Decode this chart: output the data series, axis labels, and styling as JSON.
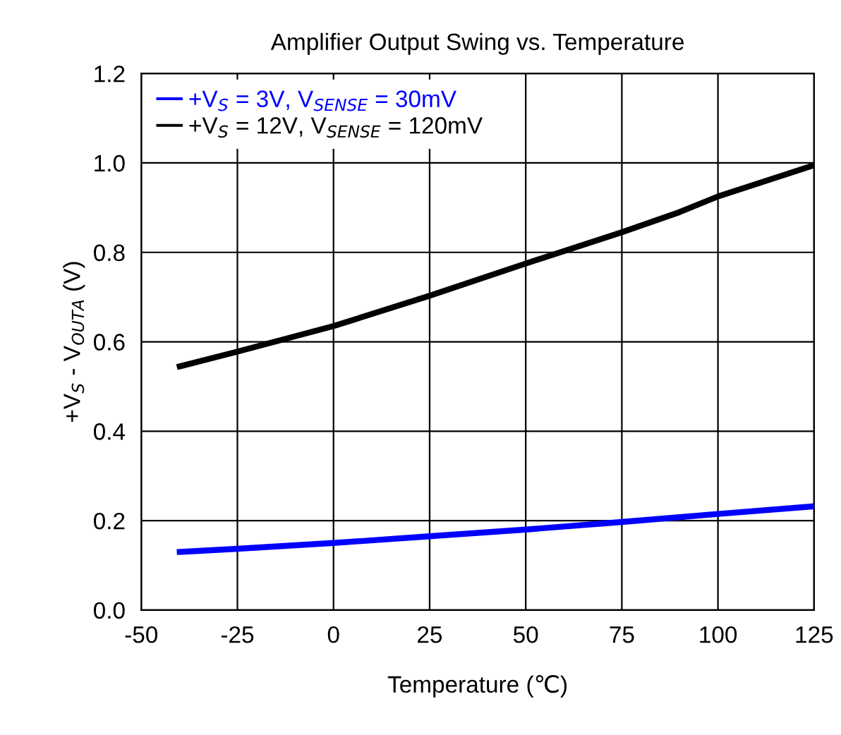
{
  "chart_data": {
    "type": "line",
    "title": "Amplifier Output Swing vs. Temperature",
    "xlabel": "Temperature (℃)",
    "ylabel": "+V$_{S}$ - V$_{OUTA}$ (V)",
    "xlim": [
      -50,
      125
    ],
    "xticks": [
      -50,
      -25,
      0,
      25,
      50,
      75,
      100,
      125
    ],
    "ylim": [
      0,
      1.2
    ],
    "yticks": [
      {
        "value": 0,
        "label": "0.0"
      },
      {
        "value": 0.2,
        "label": "0.2"
      },
      {
        "value": 0.4,
        "label": "0.4"
      },
      {
        "value": 0.6,
        "label": "0.6"
      },
      {
        "value": 0.8,
        "label": "0.8"
      },
      {
        "value": 1.0,
        "label": "1.0"
      },
      {
        "value": 1.2,
        "label": "1.2"
      }
    ],
    "grid": true,
    "legend": "top left",
    "line_style": "solid",
    "series": [
      {
        "name": "+V$_{S}$ = 3V, V$_{SENSE}$ = 30mV",
        "color": "#0000ff",
        "x": [
          -40,
          -25,
          0,
          25,
          50,
          75,
          100,
          125
        ],
        "values": [
          0.13,
          0.137,
          0.15,
          0.165,
          0.18,
          0.197,
          0.215,
          0.232
        ]
      },
      {
        "name": "+V$_{S}$ = 12V, V$_{SENSE}$ = 120mV",
        "color": "#000000",
        "x": [
          -40,
          -25,
          0,
          25,
          50,
          75,
          90,
          100,
          125
        ],
        "values": [
          0.545,
          0.578,
          0.635,
          0.703,
          0.775,
          0.845,
          0.89,
          0.925,
          0.995
        ]
      }
    ]
  }
}
